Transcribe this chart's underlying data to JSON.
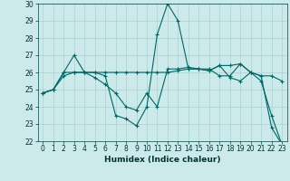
{
  "xlabel": "Humidex (Indice chaleur)",
  "xlim": [
    -0.5,
    23.5
  ],
  "ylim": [
    22,
    30
  ],
  "yticks": [
    22,
    23,
    24,
    25,
    26,
    27,
    28,
    29,
    30
  ],
  "xticks": [
    0,
    1,
    2,
    3,
    4,
    5,
    6,
    7,
    8,
    9,
    10,
    11,
    12,
    13,
    14,
    15,
    16,
    17,
    18,
    19,
    20,
    21,
    22,
    23
  ],
  "bg_color": "#cceaea",
  "grid_color": "#aacfcf",
  "line_color": "#006666",
  "series": [
    [
      24.8,
      25.0,
      26.0,
      27.0,
      26.0,
      26.0,
      25.8,
      23.5,
      23.3,
      22.9,
      24.0,
      28.2,
      30.0,
      29.0,
      26.2,
      26.2,
      26.1,
      26.4,
      25.7,
      25.5,
      26.0,
      25.5,
      23.5,
      21.8
    ],
    [
      24.8,
      25.0,
      26.0,
      26.0,
      26.0,
      26.0,
      26.0,
      26.0,
      26.0,
      26.0,
      26.0,
      26.0,
      26.0,
      26.1,
      26.2,
      26.2,
      26.1,
      26.4,
      26.4,
      26.5,
      26.0,
      25.8,
      25.8,
      25.5
    ],
    [
      24.8,
      25.0,
      25.8,
      26.0,
      26.0,
      25.7,
      25.3,
      24.8,
      24.0,
      23.8,
      24.8,
      24.0,
      26.2,
      26.2,
      26.3,
      26.2,
      26.2,
      25.8,
      25.8,
      26.5,
      26.0,
      25.8,
      22.8,
      21.8
    ]
  ],
  "figsize": [
    3.2,
    2.0
  ],
  "dpi": 100,
  "label_fontsize": 5.5,
  "xlabel_fontsize": 6.5
}
